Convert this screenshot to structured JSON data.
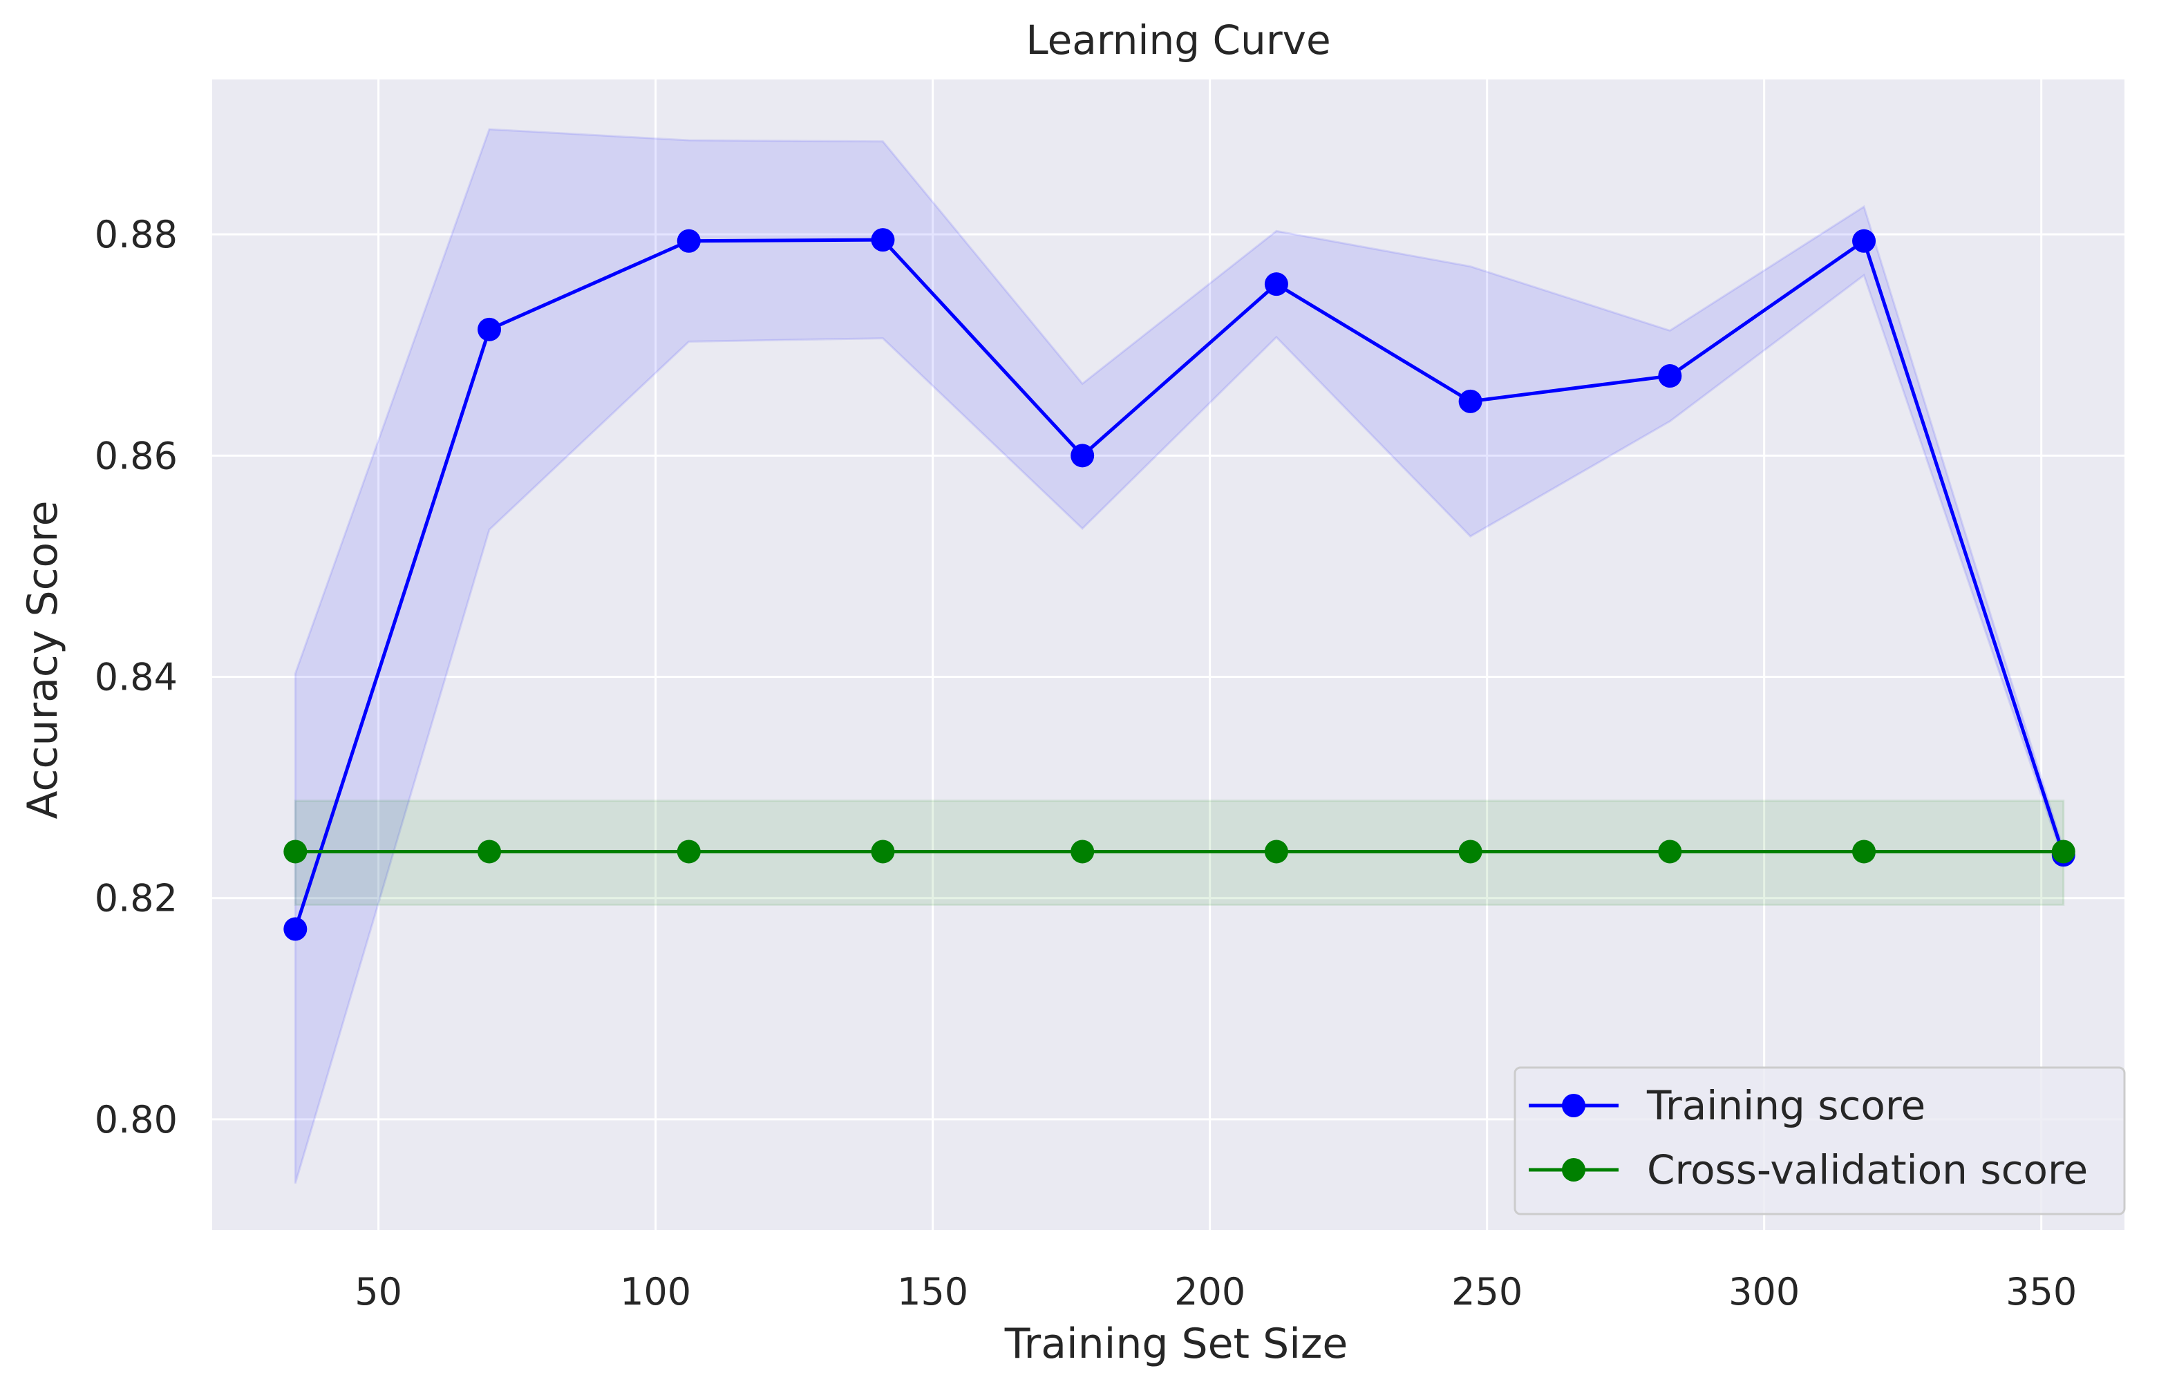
{
  "chart_data": {
    "type": "line",
    "title": "Learning Curve",
    "xlabel": "Training Set Size",
    "ylabel": "Accuracy Score",
    "xlim": [
      20,
      365
    ],
    "ylim": [
      0.79,
      0.894
    ],
    "xticks": [
      50,
      100,
      150,
      200,
      250,
      300,
      350
    ],
    "xtick_labels": [
      "50",
      "100",
      "150",
      "200",
      "250",
      "300",
      "350"
    ],
    "yticks": [
      0.8,
      0.82,
      0.84,
      0.86,
      0.88
    ],
    "ytick_labels": [
      "0.80",
      "0.82",
      "0.84",
      "0.86",
      "0.88"
    ],
    "grid": true,
    "legend_position": "bottom-right",
    "x": [
      35,
      70,
      106,
      141,
      177,
      212,
      247,
      283,
      318,
      354
    ],
    "series": [
      {
        "name": "Training score",
        "color": "#0000ff",
        "band_color": "#0000ff",
        "values": [
          0.8172,
          0.8714,
          0.8794,
          0.8795,
          0.86,
          0.8755,
          0.8649,
          0.8672,
          0.8794,
          0.8239
        ],
        "band_upper": [
          0.8403,
          0.8895,
          0.8885,
          0.8884,
          0.8665,
          0.8803,
          0.8771,
          0.8713,
          0.8825,
          0.8244
        ],
        "band_lower": [
          0.7942,
          0.8533,
          0.8703,
          0.8706,
          0.8534,
          0.8707,
          0.8527,
          0.8631,
          0.8763,
          0.8234
        ]
      },
      {
        "name": "Cross-validation score",
        "color": "#008000",
        "band_color": "#008000",
        "values": [
          0.8242,
          0.8242,
          0.8242,
          0.8242,
          0.8242,
          0.8242,
          0.8242,
          0.8242,
          0.8242,
          0.8242
        ],
        "band_upper": [
          0.8288,
          0.8288,
          0.8288,
          0.8288,
          0.8288,
          0.8288,
          0.8288,
          0.8288,
          0.8288,
          0.8288
        ],
        "band_lower": [
          0.8194,
          0.8194,
          0.8194,
          0.8194,
          0.8194,
          0.8194,
          0.8194,
          0.8194,
          0.8194,
          0.8194
        ]
      }
    ]
  },
  "colors": {
    "plot_background": "#eaeaf2",
    "grid": "#ffffff",
    "text": "#262626"
  }
}
